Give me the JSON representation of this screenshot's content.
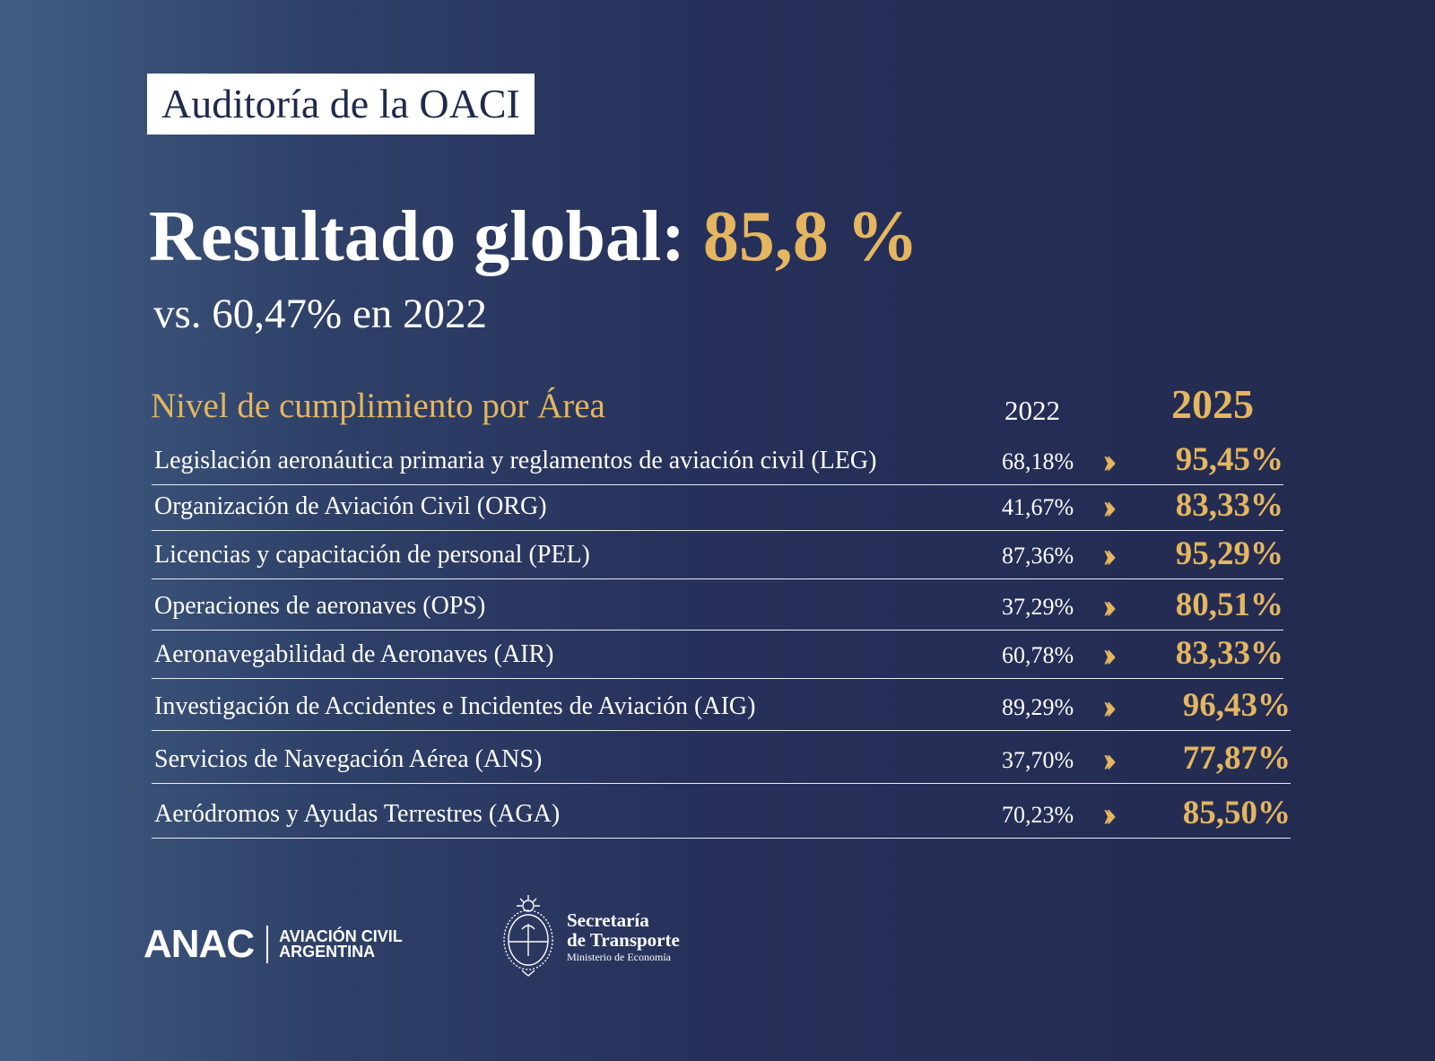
{
  "title_badge": "Auditoría de la OACI",
  "headline": {
    "label": "Resultado global:",
    "value": "85,8 %"
  },
  "subtitle": "vs. 60,47% en 2022",
  "table": {
    "header_area": "Nivel de cumplimiento por Área",
    "header_2022": "2022",
    "header_2025": "2025",
    "rows": [
      {
        "area": "Legislación aeronáutica primaria y reglamentos de aviación civil (LEG)",
        "v2022": "68,18%",
        "v2025": "95,45%"
      },
      {
        "area": "Organización de Aviación Civil (ORG)",
        "v2022": "41,67%",
        "v2025": "83,33%"
      },
      {
        "area": "Licencias y capacitación de personal (PEL)",
        "v2022": "87,36%",
        "v2025": "95,29%"
      },
      {
        "area": "Operaciones de aeronaves (OPS)",
        "v2022": "37,29%",
        "v2025": "80,51%"
      },
      {
        "area": "Aeronavegabilidad de Aeronaves (AIR)",
        "v2022": "60,78%",
        "v2025": "83,33%"
      },
      {
        "area": "Investigación de Accidentes e Incidentes de Aviación (AIG)",
        "v2022": "89,29%",
        "v2025": "96,43%"
      },
      {
        "area": "Servicios de Navegación Aérea (ANS)",
        "v2022": "37,70%",
        "v2025": "77,87%"
      },
      {
        "area": "Aeródromos y Ayudas Terrestres (AGA)",
        "v2022": "70,23%",
        "v2025": "85,50%"
      }
    ],
    "arrow_icon": "double-chevron-right"
  },
  "footer": {
    "anac": {
      "acronym": "ANAC",
      "line1": "AVIACIÓN CIVIL",
      "line2": "ARGENTINA"
    },
    "secretaria": {
      "line1": "Secretaría",
      "line2": "de Transporte",
      "line3": "Ministerio de Economía"
    }
  },
  "colors": {
    "accent_gold": "#e4b660",
    "background_dark": "#232a4f",
    "background_light": "#415d84"
  }
}
